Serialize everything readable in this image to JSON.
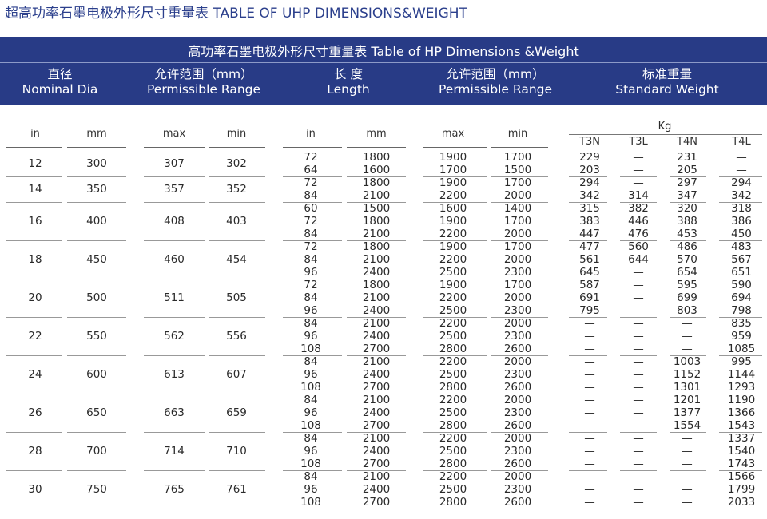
{
  "page_title": "超高功率石墨电极外形尺寸重量表 TABLE OF UHP DIMENSIONS&WEIGHT",
  "band": {
    "title": "高功率石墨电极外形尺寸重量表 Table of HP Dimensions &Weight",
    "headers": [
      {
        "cn": "直径",
        "en": "Nominal Dia"
      },
      {
        "cn": "允许范围（mm）",
        "en": "Permissible Range"
      },
      {
        "cn": "长  度",
        "en": "Length"
      },
      {
        "cn": "允许范围（mm）",
        "en": "Permissible Range"
      },
      {
        "cn": "标准重量",
        "en": "Standard Weight"
      }
    ]
  },
  "subheaders": [
    "in",
    "mm",
    "max",
    "min",
    "in",
    "mm",
    "max",
    "min"
  ],
  "kg_label": "Kg",
  "weight_headers": [
    "T3N",
    "T3L",
    "T4N",
    "T4L"
  ],
  "groups": [
    {
      "in": "12",
      "mm": "300",
      "max": "307",
      "min": "302",
      "rows": [
        [
          "72",
          "1800",
          "1900",
          "1700",
          "229",
          "—",
          "231",
          "—"
        ],
        [
          "64",
          "1600",
          "1700",
          "1500",
          "203",
          "—",
          "205",
          "—"
        ]
      ]
    },
    {
      "in": "14",
      "mm": "350",
      "max": "357",
      "min": "352",
      "rows": [
        [
          "72",
          "1800",
          "1900",
          "1700",
          "294",
          "—",
          "297",
          "294"
        ],
        [
          "84",
          "2100",
          "2200",
          "2000",
          "342",
          "314",
          "347",
          "342"
        ]
      ]
    },
    {
      "in": "16",
      "mm": "400",
      "max": "408",
      "min": "403",
      "rows": [
        [
          "60",
          "1500",
          "1600",
          "1400",
          "315",
          "382",
          "320",
          "318"
        ],
        [
          "72",
          "1800",
          "1900",
          "1700",
          "383",
          "446",
          "388",
          "386"
        ],
        [
          "84",
          "2100",
          "2200",
          "2000",
          "447",
          "476",
          "453",
          "450"
        ]
      ]
    },
    {
      "in": "18",
      "mm": "450",
      "max": "460",
      "min": "454",
      "rows": [
        [
          "72",
          "1800",
          "1900",
          "1700",
          "477",
          "560",
          "486",
          "483"
        ],
        [
          "84",
          "2100",
          "2200",
          "2000",
          "561",
          "644",
          "570",
          "567"
        ],
        [
          "96",
          "2400",
          "2500",
          "2300",
          "645",
          "—",
          "654",
          "651"
        ]
      ]
    },
    {
      "in": "20",
      "mm": "500",
      "max": "511",
      "min": "505",
      "rows": [
        [
          "72",
          "1800",
          "1900",
          "1700",
          "587",
          "—",
          "595",
          "590"
        ],
        [
          "84",
          "2100",
          "2200",
          "2000",
          "691",
          "—",
          "699",
          "694"
        ],
        [
          "96",
          "2400",
          "2500",
          "2300",
          "795",
          "—",
          "803",
          "798"
        ]
      ]
    },
    {
      "in": "22",
      "mm": "550",
      "max": "562",
      "min": "556",
      "rows": [
        [
          "84",
          "2100",
          "2200",
          "2000",
          "—",
          "—",
          "—",
          "835"
        ],
        [
          "96",
          "2400",
          "2500",
          "2300",
          "—",
          "—",
          "—",
          "959"
        ],
        [
          "108",
          "2700",
          "2800",
          "2600",
          "—",
          "—",
          "—",
          "1085"
        ]
      ]
    },
    {
      "in": "24",
      "mm": "600",
      "max": "613",
      "min": "607",
      "rows": [
        [
          "84",
          "2100",
          "2200",
          "2000",
          "—",
          "—",
          "1003",
          "995"
        ],
        [
          "96",
          "2400",
          "2500",
          "2300",
          "—",
          "—",
          "1152",
          "1144"
        ],
        [
          "108",
          "2700",
          "2800",
          "2600",
          "—",
          "—",
          "1301",
          "1293"
        ]
      ]
    },
    {
      "in": "26",
      "mm": "650",
      "max": "663",
      "min": "659",
      "rows": [
        [
          "84",
          "2100",
          "2200",
          "2000",
          "—",
          "—",
          "1201",
          "1190"
        ],
        [
          "96",
          "2400",
          "2500",
          "2300",
          "—",
          "—",
          "1377",
          "1366"
        ],
        [
          "108",
          "2700",
          "2800",
          "2600",
          "—",
          "—",
          "1554",
          "1543"
        ]
      ]
    },
    {
      "in": "28",
      "mm": "700",
      "max": "714",
      "min": "710",
      "rows": [
        [
          "84",
          "2100",
          "2200",
          "2000",
          "—",
          "—",
          "—",
          "1337"
        ],
        [
          "96",
          "2400",
          "2500",
          "2300",
          "—",
          "—",
          "—",
          "1540"
        ],
        [
          "108",
          "2700",
          "2800",
          "2600",
          "—",
          "—",
          "—",
          "1743"
        ]
      ]
    },
    {
      "in": "30",
      "mm": "750",
      "max": "765",
      "min": "761",
      "rows": [
        [
          "84",
          "2100",
          "2200",
          "2000",
          "—",
          "—",
          "—",
          "1566"
        ],
        [
          "96",
          "2400",
          "2500",
          "2300",
          "—",
          "—",
          "—",
          "1799"
        ],
        [
          "108",
          "2700",
          "2800",
          "2600",
          "—",
          "—",
          "—",
          "2033"
        ]
      ]
    }
  ]
}
